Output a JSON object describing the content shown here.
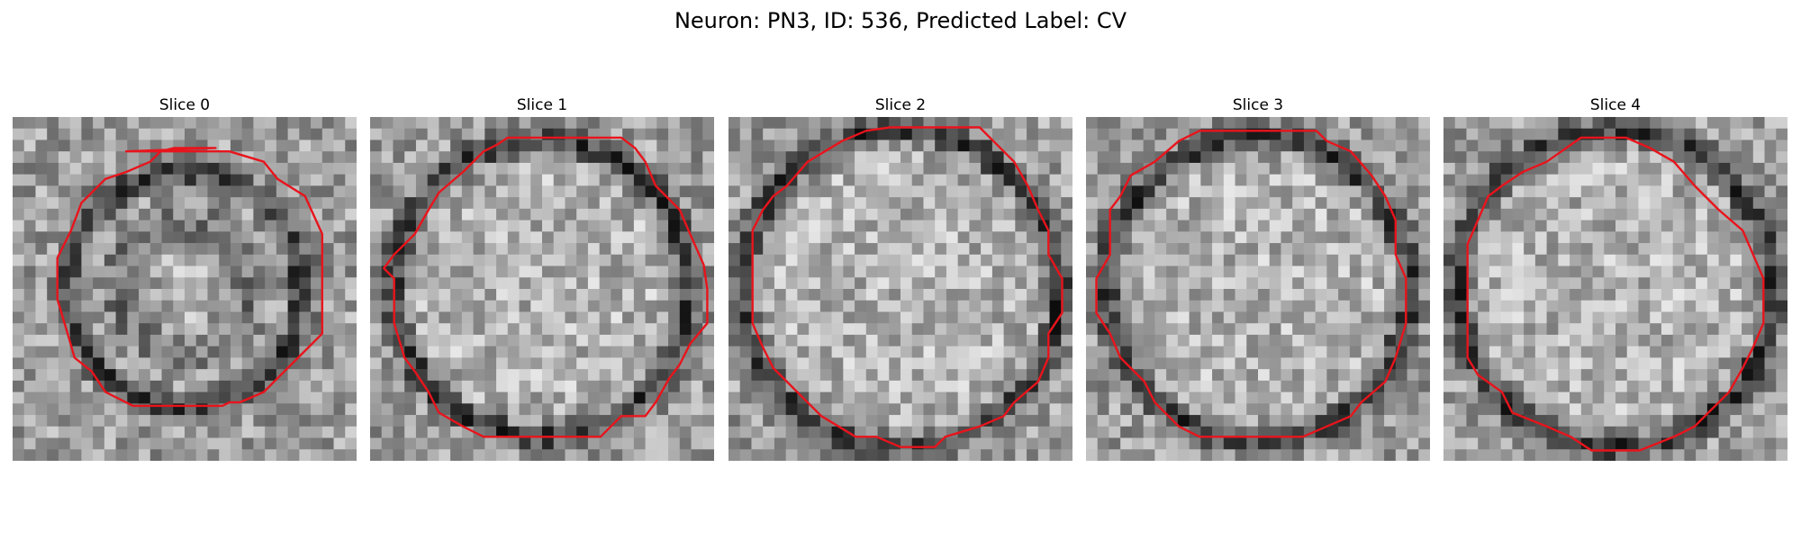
{
  "title": "Neuron: PN3, ID: 536, Predicted Label: CV",
  "contour_color": "#e8141c",
  "slices": [
    {
      "label": "Slice 0",
      "seed": 11,
      "membrane_radius": 0.34,
      "inner_dark_radius": 0.19,
      "contour": [
        [
          0.33,
          0.1
        ],
        [
          0.63,
          0.1
        ],
        [
          0.73,
          0.13
        ],
        [
          0.77,
          0.18
        ],
        [
          0.85,
          0.23
        ],
        [
          0.9,
          0.34
        ],
        [
          0.9,
          0.63
        ],
        [
          0.83,
          0.7
        ],
        [
          0.77,
          0.76
        ],
        [
          0.73,
          0.8
        ],
        [
          0.66,
          0.83
        ],
        [
          0.63,
          0.83
        ],
        [
          0.61,
          0.84
        ],
        [
          0.53,
          0.84
        ],
        [
          0.35,
          0.84
        ],
        [
          0.27,
          0.8
        ],
        [
          0.23,
          0.74
        ],
        [
          0.18,
          0.7
        ],
        [
          0.16,
          0.63
        ],
        [
          0.13,
          0.53
        ],
        [
          0.13,
          0.41
        ],
        [
          0.17,
          0.33
        ],
        [
          0.2,
          0.25
        ],
        [
          0.22,
          0.23
        ],
        [
          0.27,
          0.18
        ],
        [
          0.33,
          0.16
        ],
        [
          0.4,
          0.13
        ],
        [
          0.43,
          0.1
        ],
        [
          0.47,
          0.09
        ],
        [
          0.59,
          0.09
        ]
      ]
    },
    {
      "label": "Slice 1",
      "seed": 23,
      "membrane_radius": 0.43,
      "inner_dark_radius": 0.0,
      "contour": [
        [
          0.4,
          0.06
        ],
        [
          0.73,
          0.06
        ],
        [
          0.77,
          0.09
        ],
        [
          0.8,
          0.13
        ],
        [
          0.83,
          0.2
        ],
        [
          0.9,
          0.27
        ],
        [
          0.93,
          0.34
        ],
        [
          0.97,
          0.43
        ],
        [
          0.98,
          0.5
        ],
        [
          0.98,
          0.6
        ],
        [
          0.93,
          0.66
        ],
        [
          0.9,
          0.72
        ],
        [
          0.87,
          0.76
        ],
        [
          0.83,
          0.83
        ],
        [
          0.8,
          0.87
        ],
        [
          0.73,
          0.87
        ],
        [
          0.67,
          0.93
        ],
        [
          0.33,
          0.93
        ],
        [
          0.27,
          0.9
        ],
        [
          0.2,
          0.86
        ],
        [
          0.17,
          0.8
        ],
        [
          0.13,
          0.74
        ],
        [
          0.1,
          0.7
        ],
        [
          0.07,
          0.6
        ],
        [
          0.07,
          0.47
        ],
        [
          0.04,
          0.44
        ],
        [
          0.07,
          0.4
        ],
        [
          0.13,
          0.34
        ],
        [
          0.17,
          0.27
        ],
        [
          0.2,
          0.22
        ],
        [
          0.27,
          0.16
        ],
        [
          0.33,
          0.1
        ],
        [
          0.37,
          0.08
        ]
      ]
    },
    {
      "label": "Slice 2",
      "seed": 37,
      "membrane_radius": 0.46,
      "inner_dark_radius": 0.0,
      "contour": [
        [
          0.23,
          0.13
        ],
        [
          0.33,
          0.07
        ],
        [
          0.4,
          0.04
        ],
        [
          0.47,
          0.03
        ],
        [
          0.73,
          0.03
        ],
        [
          0.77,
          0.07
        ],
        [
          0.83,
          0.13
        ],
        [
          0.87,
          0.2
        ],
        [
          0.9,
          0.27
        ],
        [
          0.93,
          0.33
        ],
        [
          0.93,
          0.4
        ],
        [
          0.97,
          0.47
        ],
        [
          0.97,
          0.57
        ],
        [
          0.93,
          0.63
        ],
        [
          0.93,
          0.7
        ],
        [
          0.9,
          0.77
        ],
        [
          0.83,
          0.83
        ],
        [
          0.8,
          0.87
        ],
        [
          0.73,
          0.9
        ],
        [
          0.63,
          0.93
        ],
        [
          0.6,
          0.96
        ],
        [
          0.5,
          0.96
        ],
        [
          0.43,
          0.93
        ],
        [
          0.37,
          0.93
        ],
        [
          0.27,
          0.87
        ],
        [
          0.2,
          0.8
        ],
        [
          0.13,
          0.73
        ],
        [
          0.1,
          0.67
        ],
        [
          0.07,
          0.6
        ],
        [
          0.07,
          0.33
        ],
        [
          0.1,
          0.27
        ],
        [
          0.13,
          0.23
        ],
        [
          0.17,
          0.2
        ]
      ]
    },
    {
      "label": "Slice 3",
      "seed": 53,
      "membrane_radius": 0.44,
      "inner_dark_radius": 0.0,
      "contour": [
        [
          0.33,
          0.04
        ],
        [
          0.67,
          0.04
        ],
        [
          0.7,
          0.07
        ],
        [
          0.77,
          0.1
        ],
        [
          0.83,
          0.17
        ],
        [
          0.87,
          0.23
        ],
        [
          0.9,
          0.3
        ],
        [
          0.9,
          0.4
        ],
        [
          0.93,
          0.47
        ],
        [
          0.93,
          0.6
        ],
        [
          0.9,
          0.7
        ],
        [
          0.87,
          0.77
        ],
        [
          0.8,
          0.83
        ],
        [
          0.77,
          0.87
        ],
        [
          0.7,
          0.9
        ],
        [
          0.63,
          0.93
        ],
        [
          0.33,
          0.93
        ],
        [
          0.27,
          0.9
        ],
        [
          0.2,
          0.83
        ],
        [
          0.17,
          0.77
        ],
        [
          0.1,
          0.7
        ],
        [
          0.07,
          0.63
        ],
        [
          0.03,
          0.57
        ],
        [
          0.03,
          0.47
        ],
        [
          0.07,
          0.4
        ],
        [
          0.07,
          0.27
        ],
        [
          0.1,
          0.23
        ],
        [
          0.13,
          0.17
        ],
        [
          0.2,
          0.13
        ],
        [
          0.27,
          0.07
        ]
      ]
    },
    {
      "label": "Slice 4",
      "seed": 71,
      "membrane_radius": 0.46,
      "inner_dark_radius": 0.0,
      "contour": [
        [
          0.4,
          0.06
        ],
        [
          0.53,
          0.06
        ],
        [
          0.6,
          0.09
        ],
        [
          0.67,
          0.13
        ],
        [
          0.73,
          0.2
        ],
        [
          0.8,
          0.27
        ],
        [
          0.87,
          0.33
        ],
        [
          0.9,
          0.4
        ],
        [
          0.93,
          0.47
        ],
        [
          0.93,
          0.6
        ],
        [
          0.9,
          0.67
        ],
        [
          0.87,
          0.73
        ],
        [
          0.83,
          0.8
        ],
        [
          0.77,
          0.86
        ],
        [
          0.73,
          0.9
        ],
        [
          0.67,
          0.93
        ],
        [
          0.57,
          0.97
        ],
        [
          0.43,
          0.97
        ],
        [
          0.37,
          0.93
        ],
        [
          0.3,
          0.9
        ],
        [
          0.2,
          0.86
        ],
        [
          0.17,
          0.8
        ],
        [
          0.1,
          0.75
        ],
        [
          0.07,
          0.7
        ],
        [
          0.07,
          0.37
        ],
        [
          0.1,
          0.3
        ],
        [
          0.13,
          0.23
        ],
        [
          0.17,
          0.2
        ],
        [
          0.23,
          0.16
        ],
        [
          0.3,
          0.13
        ]
      ]
    }
  ]
}
